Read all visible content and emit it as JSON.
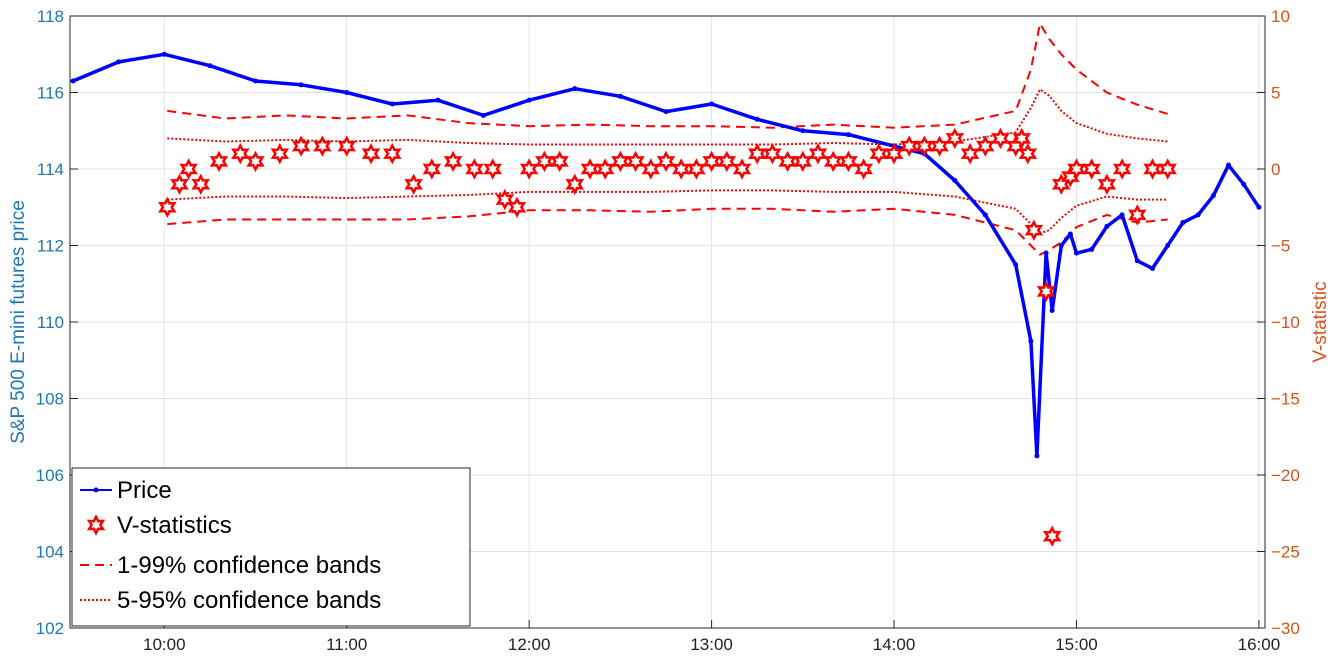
{
  "chart_data": {
    "type": "line",
    "ylabel_left": "S&P 500 E-mini futures price",
    "ylabel_right": "V-statistic",
    "ylim_left": [
      102,
      118
    ],
    "ylim_right": [
      -30,
      10
    ],
    "xlim": [
      "09:29",
      "16:02"
    ],
    "x_ticks": [
      "10:00",
      "11:00",
      "12:00",
      "13:00",
      "14:00",
      "15:00",
      "16:00"
    ],
    "y_ticks_left": [
      102,
      104,
      106,
      108,
      110,
      112,
      114,
      116,
      118
    ],
    "y_ticks_right": [
      -30,
      -25,
      -20,
      -15,
      -10,
      -5,
      0,
      5,
      10
    ],
    "grid": true,
    "legend_position": "bottom-left",
    "colors": {
      "price": "#0000ff",
      "vstat": "#ff0000",
      "left_axis": "#1f77b4",
      "right_axis": "#d95319"
    },
    "series": [
      {
        "name": "Price",
        "axis": "left",
        "x": [
          "09:30",
          "09:45",
          "10:00",
          "10:15",
          "10:30",
          "10:45",
          "11:00",
          "11:15",
          "11:30",
          "11:45",
          "12:00",
          "12:15",
          "12:30",
          "12:45",
          "13:00",
          "13:15",
          "13:30",
          "13:45",
          "14:00",
          "14:10",
          "14:20",
          "14:30",
          "14:40",
          "14:45",
          "14:47",
          "14:50",
          "14:52",
          "14:55",
          "14:58",
          "15:00",
          "15:05",
          "15:10",
          "15:15",
          "15:20",
          "15:25",
          "15:30",
          "15:35",
          "15:40",
          "15:45",
          "15:50",
          "15:55",
          "16:00"
        ],
        "values": [
          116.3,
          116.8,
          117.0,
          116.7,
          116.3,
          116.2,
          116.0,
          115.7,
          115.8,
          115.4,
          115.8,
          116.1,
          115.9,
          115.5,
          115.7,
          115.3,
          115.0,
          114.9,
          114.6,
          114.4,
          113.7,
          112.8,
          111.5,
          109.5,
          106.5,
          111.8,
          110.3,
          112.0,
          112.3,
          111.8,
          111.9,
          112.5,
          112.8,
          111.6,
          111.4,
          112.0,
          112.6,
          112.8,
          113.3,
          114.1,
          113.6,
          113.0
        ]
      },
      {
        "name": "V-statistics",
        "axis": "right",
        "x": [
          "10:01",
          "10:05",
          "10:08",
          "10:12",
          "10:18",
          "10:25",
          "10:30",
          "10:38",
          "10:45",
          "10:52",
          "11:00",
          "11:08",
          "11:15",
          "11:22",
          "11:28",
          "11:35",
          "11:42",
          "11:48",
          "11:52",
          "11:56",
          "12:00",
          "12:05",
          "12:10",
          "12:15",
          "12:20",
          "12:25",
          "12:30",
          "12:35",
          "12:40",
          "12:45",
          "12:50",
          "12:55",
          "13:00",
          "13:05",
          "13:10",
          "13:15",
          "13:20",
          "13:25",
          "13:30",
          "13:35",
          "13:40",
          "13:45",
          "13:50",
          "13:55",
          "14:00",
          "14:05",
          "14:10",
          "14:15",
          "14:20",
          "14:25",
          "14:30",
          "14:35",
          "14:40",
          "14:42",
          "14:44",
          "14:46",
          "14:50",
          "14:52",
          "14:55",
          "14:58",
          "15:00",
          "15:05",
          "15:10",
          "15:15",
          "15:20",
          "15:25",
          "15:30"
        ],
        "values": [
          -2.5,
          -1,
          0,
          -1,
          0.5,
          1,
          0.5,
          1,
          1.5,
          1.5,
          1.5,
          1,
          1,
          -1,
          0,
          0.5,
          0,
          0,
          -2,
          -2.5,
          0,
          0.5,
          0.5,
          -1,
          0,
          0,
          0.5,
          0.5,
          0,
          0.5,
          0,
          0,
          0.5,
          0.5,
          0,
          1,
          1,
          0.5,
          0.5,
          1,
          0.5,
          0.5,
          0,
          1,
          1,
          1.5,
          1.5,
          1.5,
          2,
          1,
          1.5,
          2,
          1.5,
          2,
          1,
          -4,
          -8,
          -24,
          -1,
          -0.5,
          0,
          0,
          -1,
          0,
          -3,
          0,
          0
        ]
      },
      {
        "name": "1-99% confidence bands",
        "axis": "right",
        "x": [
          "10:01",
          "10:20",
          "10:40",
          "11:00",
          "11:20",
          "11:40",
          "12:00",
          "12:20",
          "12:40",
          "13:00",
          "13:20",
          "13:40",
          "14:00",
          "14:20",
          "14:40",
          "14:45",
          "14:48",
          "14:51",
          "14:55",
          "15:00",
          "15:10",
          "15:20",
          "15:30"
        ],
        "upper": [
          3.8,
          3.3,
          3.5,
          3.3,
          3.5,
          3.0,
          2.8,
          2.9,
          2.8,
          2.8,
          2.7,
          2.9,
          2.7,
          2.9,
          3.8,
          6.5,
          9.5,
          8.5,
          7.5,
          6.5,
          5.0,
          4.2,
          3.6
        ],
        "lower": [
          -3.6,
          -3.3,
          -3.3,
          -3.3,
          -3.3,
          -3.1,
          -2.7,
          -2.7,
          -2.8,
          -2.6,
          -2.6,
          -2.8,
          -2.6,
          -3.0,
          -4.0,
          -5.0,
          -5.6,
          -5.3,
          -4.8,
          -3.8,
          -3.0,
          -3.5,
          -3.3
        ]
      },
      {
        "name": "5-95% confidence bands",
        "axis": "right",
        "x": [
          "10:01",
          "10:20",
          "10:40",
          "11:00",
          "11:20",
          "11:40",
          "12:00",
          "12:20",
          "12:40",
          "13:00",
          "13:20",
          "13:40",
          "14:00",
          "14:20",
          "14:40",
          "14:45",
          "14:48",
          "14:51",
          "14:55",
          "15:00",
          "15:10",
          "15:20",
          "15:30"
        ],
        "upper": [
          2.0,
          1.8,
          1.9,
          1.8,
          1.9,
          1.7,
          1.6,
          1.6,
          1.6,
          1.6,
          1.6,
          1.7,
          1.6,
          1.8,
          2.4,
          4.0,
          5.2,
          4.8,
          3.8,
          3.0,
          2.3,
          2.0,
          1.8
        ],
        "lower": [
          -2.0,
          -1.8,
          -1.8,
          -1.9,
          -1.8,
          -1.7,
          -1.5,
          -1.5,
          -1.5,
          -1.4,
          -1.4,
          -1.5,
          -1.5,
          -1.8,
          -2.6,
          -3.6,
          -4.2,
          -4.0,
          -3.2,
          -2.4,
          -1.8,
          -2.0,
          -2.0
        ]
      }
    ],
    "legend": {
      "price": "Price",
      "vstat": "V-statistics",
      "band99": "1-99% confidence bands",
      "band95": "5-95% confidence bands"
    }
  }
}
